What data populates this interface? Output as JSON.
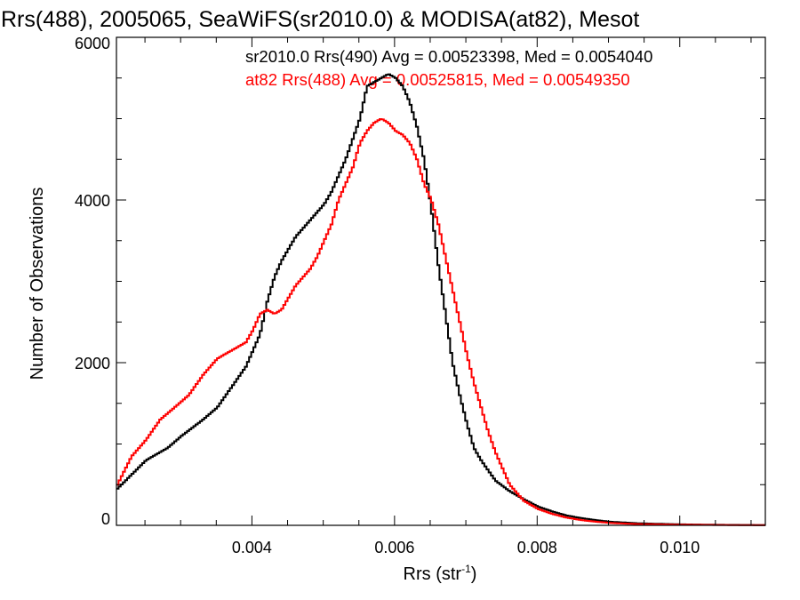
{
  "chart_data": {
    "type": "line",
    "title": "Rrs(488), 2005065, SeaWiFS(sr2010.0) & MODISA(at82), Mesot",
    "xlabel": "Rrs (str",
    "xlabel_sup": "-1",
    "xlabel_close": ")",
    "ylabel": "Number of Observations",
    "xlim": [
      0.0021,
      0.0112
    ],
    "ylim": [
      0,
      6000
    ],
    "xticks": [
      0.004,
      0.006,
      0.008,
      0.01
    ],
    "xtick_labels": [
      "0.004",
      "0.006",
      "0.008",
      "0.010"
    ],
    "yticks": [
      0,
      2000,
      4000,
      6000
    ],
    "ytick_labels": [
      "0",
      "2000",
      "4000",
      "6000"
    ],
    "grid": false,
    "annotations": [
      {
        "text": "sr2010.0 Rrs(490) Avg = 0.00523398, Med = 0.0054040",
        "color": "#000000"
      },
      {
        "text": "at82 Rrs(488) Avg = 0.00525815, Med = 0.00549350",
        "color": "#ff0000"
      }
    ],
    "series": [
      {
        "name": "sr2010.0 Rrs(490)",
        "color": "#000000",
        "x": [
          0.0021,
          0.0025,
          0.0028,
          0.003,
          0.0033,
          0.0035,
          0.0037,
          0.0039,
          0.004,
          0.0041,
          0.0042,
          0.0043,
          0.0044,
          0.0045,
          0.0046,
          0.0047,
          0.0048,
          0.0049,
          0.005,
          0.0051,
          0.0052,
          0.0053,
          0.0054,
          0.0055,
          0.0056,
          0.0057,
          0.0058,
          0.0059,
          0.006,
          0.0061,
          0.0062,
          0.0063,
          0.0064,
          0.0065,
          0.0066,
          0.0067,
          0.0068,
          0.0069,
          0.007,
          0.0071,
          0.0072,
          0.0074,
          0.0076,
          0.0078,
          0.008,
          0.0082,
          0.0084,
          0.0086,
          0.0088,
          0.009,
          0.0094,
          0.01,
          0.0106,
          0.0112
        ],
        "y": [
          450,
          800,
          950,
          1100,
          1300,
          1450,
          1700,
          1950,
          2150,
          2350,
          2750,
          3050,
          3250,
          3400,
          3550,
          3650,
          3750,
          3850,
          3950,
          4100,
          4300,
          4500,
          4750,
          5000,
          5400,
          5450,
          5500,
          5550,
          5500,
          5400,
          5200,
          4900,
          4500,
          3900,
          3200,
          2600,
          2000,
          1600,
          1250,
          950,
          800,
          550,
          420,
          320,
          230,
          170,
          120,
          90,
          65,
          45,
          25,
          12,
          6,
          3
        ]
      },
      {
        "name": "at82 Rrs(488)",
        "color": "#ff0000",
        "x": [
          0.0021,
          0.0023,
          0.0025,
          0.0027,
          0.0029,
          0.0031,
          0.0033,
          0.0035,
          0.0037,
          0.0039,
          0.004,
          0.0041,
          0.0042,
          0.0043,
          0.0044,
          0.0045,
          0.0046,
          0.0047,
          0.0048,
          0.0049,
          0.005,
          0.0051,
          0.0052,
          0.0053,
          0.0054,
          0.0055,
          0.0056,
          0.0057,
          0.0058,
          0.0059,
          0.006,
          0.0061,
          0.0062,
          0.0063,
          0.0064,
          0.0065,
          0.0066,
          0.0067,
          0.0068,
          0.0069,
          0.007,
          0.0071,
          0.0072,
          0.0073,
          0.0074,
          0.0075,
          0.0076,
          0.0078,
          0.008,
          0.0082,
          0.0084,
          0.0086,
          0.0088,
          0.009,
          0.0094,
          0.01,
          0.0106,
          0.0112
        ],
        "y": [
          500,
          850,
          1050,
          1300,
          1450,
          1600,
          1850,
          2050,
          2150,
          2250,
          2400,
          2600,
          2650,
          2600,
          2650,
          2800,
          2950,
          3050,
          3150,
          3300,
          3500,
          3700,
          4000,
          4200,
          4400,
          4700,
          4850,
          4950,
          5000,
          4950,
          4850,
          4800,
          4700,
          4500,
          4200,
          4000,
          3700,
          3300,
          2900,
          2500,
          2100,
          1750,
          1450,
          1150,
          900,
          700,
          500,
          300,
          200,
          140,
          95,
          65,
          45,
          30,
          15,
          8,
          4,
          2
        ]
      }
    ]
  }
}
